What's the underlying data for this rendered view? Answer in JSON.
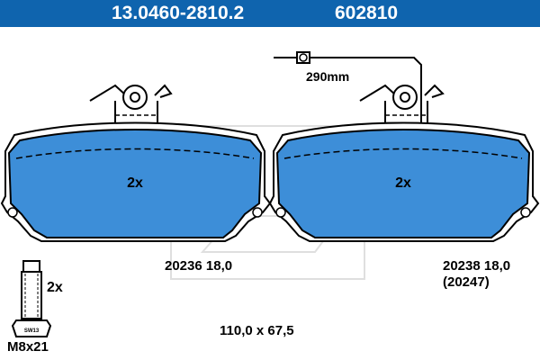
{
  "header": {
    "part_number": "13.0460-2810.2",
    "reference": "602810",
    "background_color": "#0f64ae",
    "text_color": "#ffffff"
  },
  "pad_color": "#3d8ed8",
  "left_pad": {
    "quantity": "2x",
    "code": "20236 18,0"
  },
  "right_pad": {
    "quantity": "2x",
    "code": "20238 18,0",
    "alt_code": "(20247)"
  },
  "sensor": {
    "length": "290mm"
  },
  "bolt": {
    "quantity": "2x",
    "size": "M8x21",
    "wrench": "SW13"
  },
  "dimensions": "110,0 x 67,5"
}
